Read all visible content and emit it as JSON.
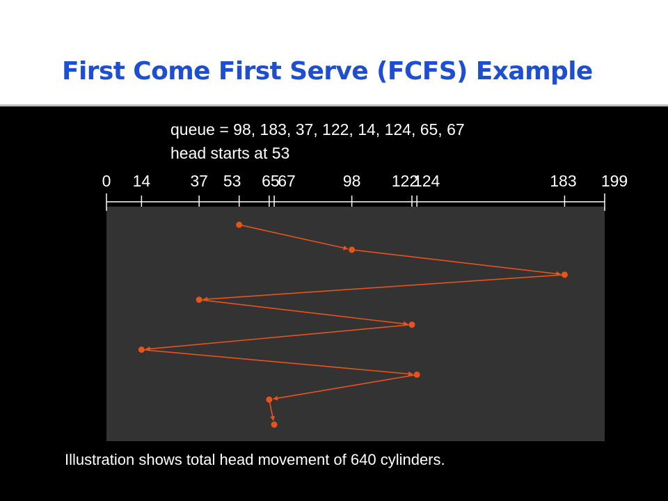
{
  "slide": {
    "title": "First Come First Serve (FCFS) Example",
    "caption": "Illustration shows total head movement of 640 cylinders."
  },
  "diagram": {
    "queue_text": "queue = 98, 183, 37, 122, 14, 124, 65, 67",
    "head_text": "head starts at 53",
    "axis_min": 0,
    "axis_max": 199,
    "ticks": [
      0,
      14,
      37,
      53,
      65,
      67,
      98,
      122,
      124,
      183,
      199
    ],
    "tick_labels": [
      "0",
      "14",
      "37",
      "53",
      "65",
      "67",
      "98",
      "122",
      "124",
      "183",
      "199"
    ],
    "head_sequence": [
      53,
      98,
      183,
      37,
      122,
      14,
      124,
      65,
      67
    ],
    "colors": {
      "plot_background": "#333333",
      "path": "#e8531c",
      "axis": "#ffffff",
      "title": "#1f4fd1"
    }
  }
}
